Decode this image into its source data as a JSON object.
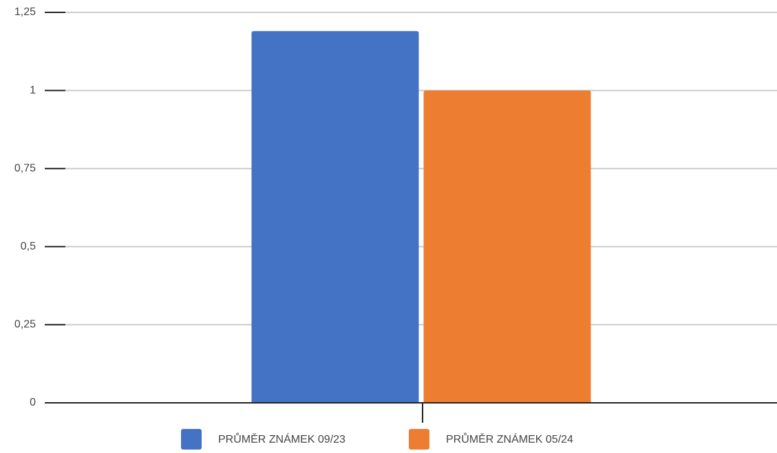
{
  "chart_data": {
    "type": "bar",
    "categories": [
      null
    ],
    "series": [
      {
        "name": "PRŮMĚR ZNÁMEK 09/23",
        "color": "#4472c4",
        "values": [
          1.19
        ]
      },
      {
        "name": "PRŮMĚR ZNÁMEK 05/24",
        "color": "#ed7d31",
        "values": [
          1
        ]
      }
    ],
    "ylim": [
      0,
      1.25
    ],
    "yticks": [
      0,
      {
        "value": 0.25,
        "label": "0,25"
      },
      {
        "value": 0.5,
        "label": "0,5"
      },
      {
        "value": 0.75,
        "label": "0,75"
      },
      1,
      {
        "value": 1.25,
        "label": "1,25"
      }
    ],
    "grid": true,
    "legend": "bottom"
  }
}
